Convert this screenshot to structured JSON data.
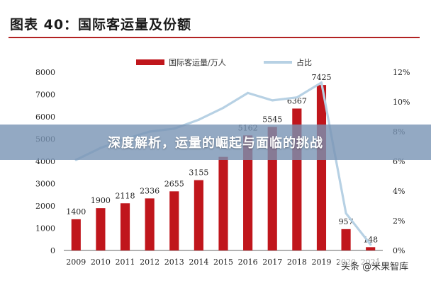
{
  "header": {
    "title": "图表 40：国际客运量及份额"
  },
  "banner": {
    "text": "深度解析，运量的崛起与面临的挑战"
  },
  "watermark": {
    "text": "头条 @米果智库"
  },
  "colors": {
    "bar": "#c0161c",
    "line": "#b7d1e4",
    "title_rule": "#b22222"
  },
  "chart_data": {
    "type": "bar",
    "categories": [
      "2009",
      "2010",
      "2011",
      "2012",
      "2013",
      "2014",
      "2015",
      "2016",
      "2017",
      "2018",
      "2019",
      "2020",
      "2021"
    ],
    "series": [
      {
        "name": "国际客运量/万人",
        "type": "bar",
        "axis": "left",
        "values": [
          1400,
          1900,
          2118,
          2336,
          2655,
          3155,
          4200,
          5162,
          5545,
          6367,
          7425,
          957,
          148
        ],
        "labels": [
          "1400",
          "1900",
          "2118",
          "2336",
          "2655",
          "3155",
          "",
          "5162",
          "5545",
          "6367",
          "7425",
          "957",
          "148"
        ]
      },
      {
        "name": "占比",
        "type": "line",
        "axis": "right",
        "values": [
          6.1,
          6.9,
          7.5,
          8.0,
          8.2,
          8.8,
          9.6,
          10.6,
          10.1,
          10.3,
          11.3,
          2.5,
          0.4
        ]
      }
    ],
    "left_axis": {
      "ylim": [
        0,
        8000
      ],
      "ticks": [
        "0",
        "1000",
        "2000",
        "3000",
        "4000",
        "5000",
        "6000",
        "7000",
        "8000"
      ]
    },
    "right_axis": {
      "ylim": [
        0,
        12
      ],
      "ticks": [
        "0%",
        "2%",
        "4%",
        "6%",
        "8%",
        "10%",
        "12%"
      ]
    },
    "legend_position": "top-center"
  }
}
